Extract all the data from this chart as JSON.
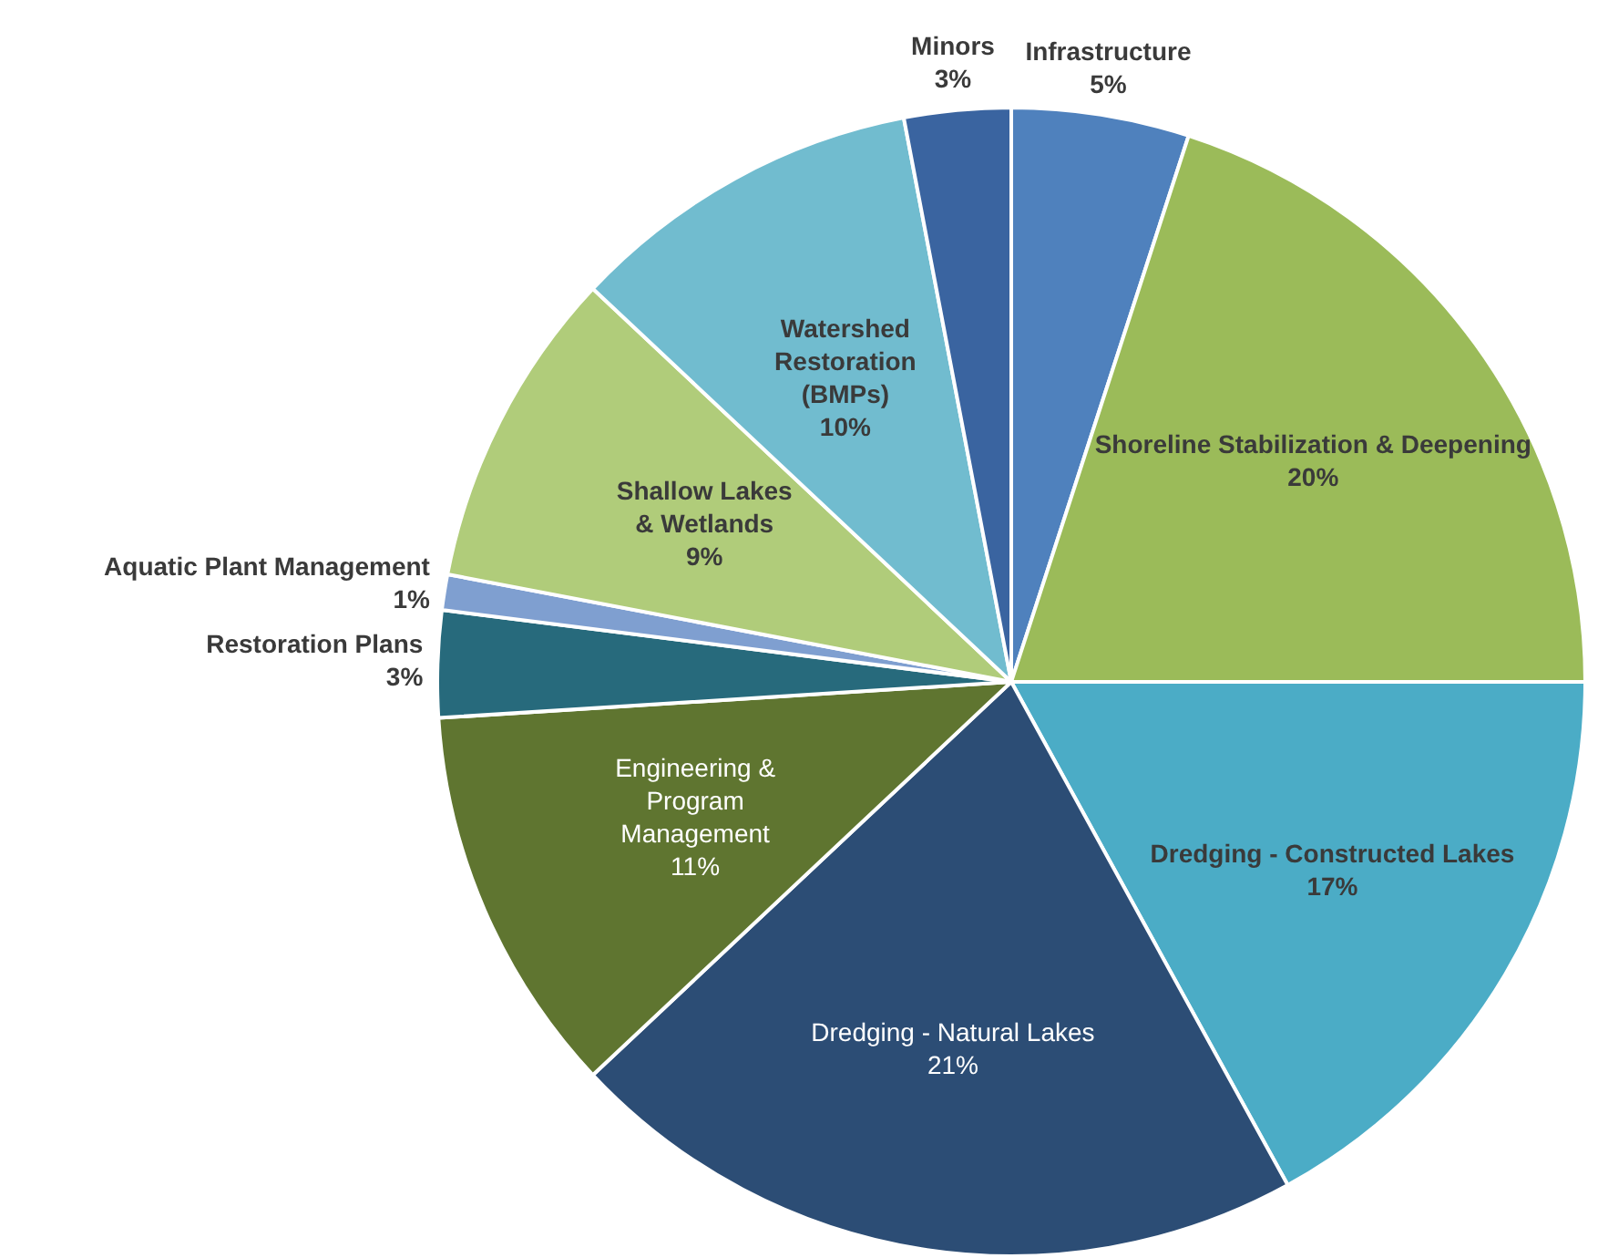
{
  "chart_data": {
    "type": "pie",
    "categories": [
      "Infrastructure",
      "Shoreline Stabilization & Deepening",
      "Dredging - Constructed Lakes",
      "Dredging - Natural Lakes",
      "Engineering & Program Management",
      "Restoration Plans",
      "Aquatic Plant Management",
      "Shallow Lakes & Wetlands",
      "Watershed Restoration (BMPs)",
      "Minors"
    ],
    "values": [
      5,
      20,
      17,
      21,
      11,
      3,
      1,
      9,
      10,
      3
    ],
    "value_labels": [
      "5%",
      "20%",
      "17%",
      "21%",
      "11%",
      "3%",
      "1%",
      "9%",
      "10%",
      "3%"
    ],
    "colors": [
      "#4f81bd",
      "#9bbb59",
      "#4bacc6",
      "#2c4d75",
      "#5f7530",
      "#276a7c",
      "#7f9fd0",
      "#b0cc7a",
      "#71bccf",
      "#3a64a0"
    ],
    "legend": false
  }
}
